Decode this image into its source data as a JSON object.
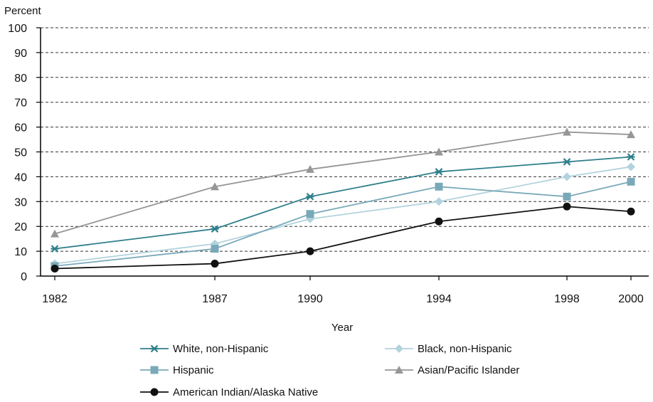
{
  "chart_data": {
    "type": "line",
    "ylabel": "Percent",
    "xlabel": "Year",
    "x": [
      1982,
      1987,
      1990,
      1994,
      1998,
      2000
    ],
    "x_tick_labels": [
      "1982",
      "1987",
      "1990",
      "1994",
      "1998",
      "2000"
    ],
    "y_ticks": [
      0,
      10,
      20,
      30,
      40,
      50,
      60,
      70,
      80,
      90,
      100
    ],
    "y_tick_labels": [
      "0",
      "10",
      "20",
      "30",
      "40",
      "50",
      "60",
      "70",
      "80",
      "90",
      "100"
    ],
    "ylim": [
      0,
      100
    ],
    "grid": "horizontal dashed",
    "legend_position": "bottom",
    "series": [
      {
        "name": "White, non-Hispanic",
        "marker": "asterisk",
        "color": "#2e7f8a",
        "values": [
          11,
          19,
          32,
          42,
          46,
          48
        ]
      },
      {
        "name": "Black, non-Hispanic",
        "marker": "diamond",
        "color": "#b3d3dd",
        "values": [
          5,
          13,
          23,
          30,
          40,
          44
        ]
      },
      {
        "name": "Hispanic",
        "marker": "square",
        "color": "#79a9b9",
        "values": [
          4,
          11,
          25,
          36,
          32,
          38
        ]
      },
      {
        "name": "Asian/Pacific Islander",
        "marker": "triangle",
        "color": "#969696",
        "values": [
          17,
          36,
          43,
          50,
          58,
          57
        ]
      },
      {
        "name": "American Indian/Alaska Native",
        "marker": "circle",
        "color": "#111111",
        "values": [
          3,
          5,
          10,
          22,
          28,
          26
        ]
      }
    ]
  }
}
